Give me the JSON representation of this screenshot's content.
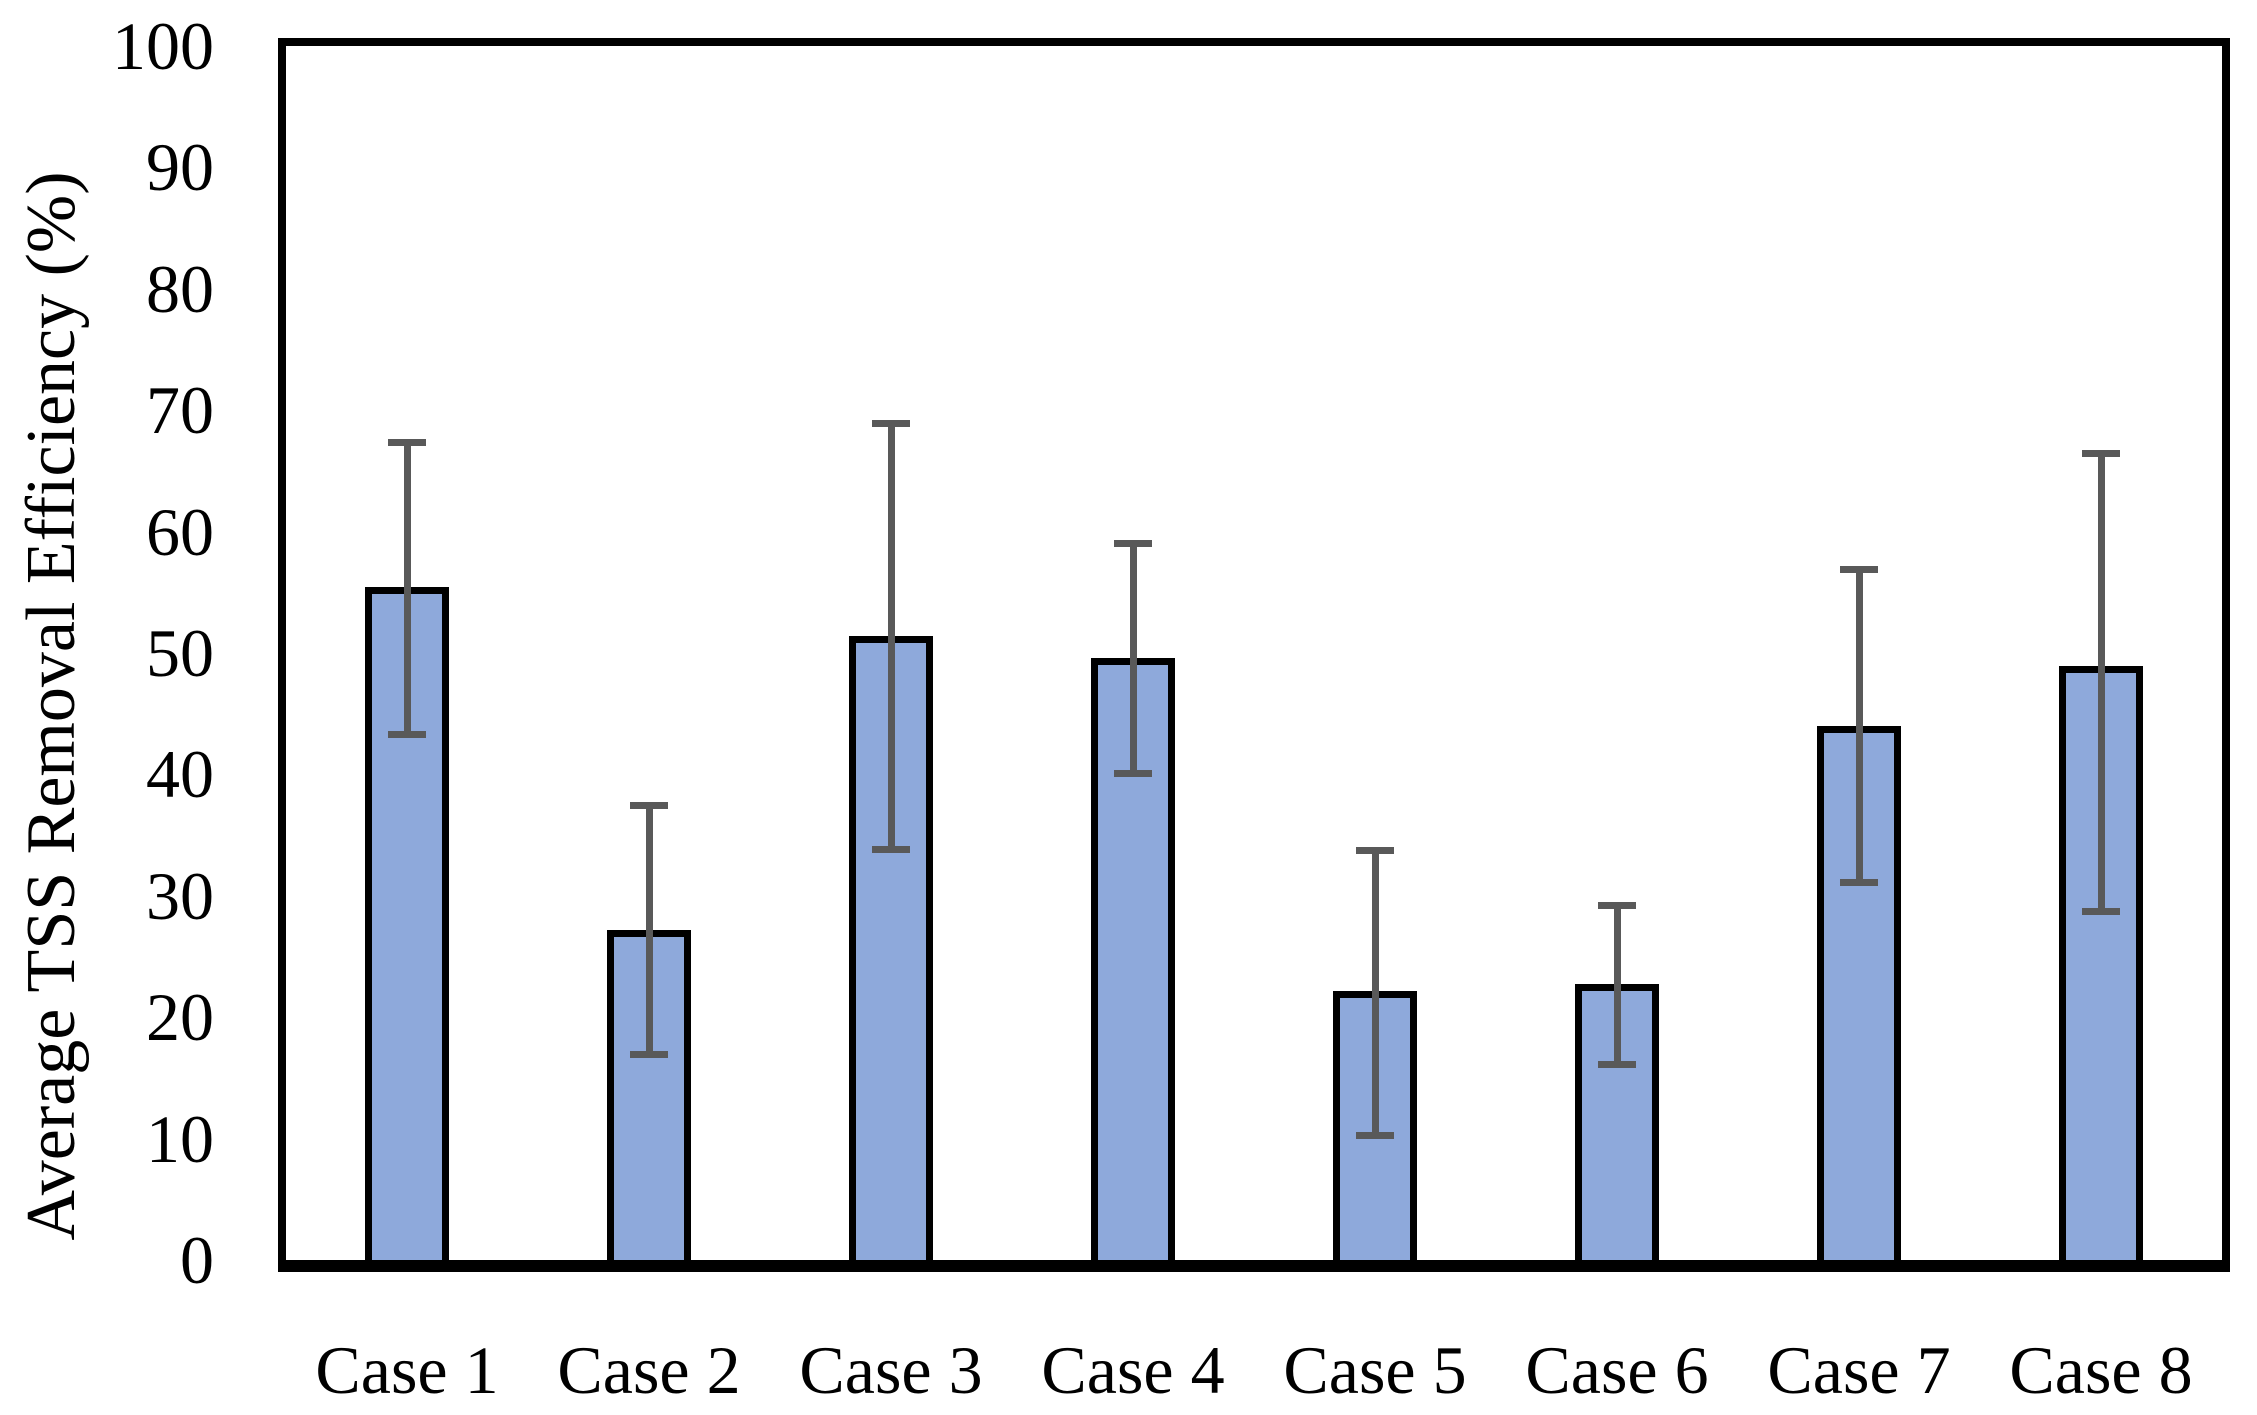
{
  "chart_data": {
    "type": "bar",
    "title": "",
    "xlabel": "",
    "ylabel": "Average TSS Removal Efficiency (%)",
    "categories": [
      "Case 1",
      "Case 2",
      "Case 3",
      "Case 4",
      "Case 5",
      "Case 6",
      "Case 7",
      "Case 8"
    ],
    "series": [
      {
        "name": "Average TSS Removal Efficiency",
        "values": [
          55.4,
          27.2,
          51.4,
          49.6,
          22.2,
          22.7,
          44.0,
          48.9
        ],
        "error_upper": [
          67.6,
          37.7,
          69.2,
          59.3,
          34.0,
          29.5,
          57.2,
          66.7
        ],
        "error_lower": [
          43.0,
          16.6,
          33.5,
          39.8,
          10.0,
          15.8,
          30.8,
          28.4
        ]
      }
    ],
    "ylim": [
      0,
      100
    ],
    "yticks": [
      0,
      10,
      20,
      30,
      40,
      50,
      60,
      70,
      80,
      90,
      100
    ],
    "grid": false,
    "legend": "none",
    "colors": {
      "bar_fill": "#8EA9DB",
      "bar_border": "#000000",
      "error_bar": "#595959",
      "axis": "#000000",
      "background": "#FFFFFF",
      "text": "#000000"
    }
  }
}
